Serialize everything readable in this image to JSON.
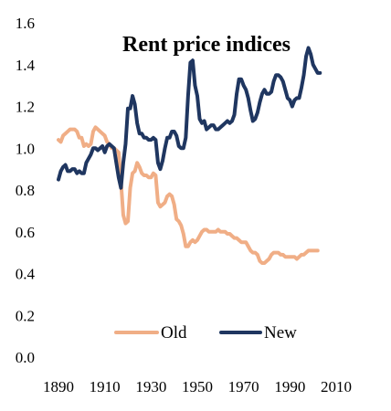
{
  "chart_data": {
    "type": "line",
    "title": "Rent price indices",
    "xlabel": "",
    "ylabel": "",
    "xlim": [
      1890,
      2010
    ],
    "ylim": [
      0.0,
      1.6
    ],
    "x_ticks": [
      1890,
      1910,
      1930,
      1950,
      1970,
      1990,
      2010
    ],
    "y_ticks": [
      0.0,
      0.2,
      0.4,
      0.6,
      0.8,
      1.0,
      1.2,
      1.4,
      1.6
    ],
    "y_tick_labels": [
      "0.0",
      "0.2",
      "0.4",
      "0.6",
      "0.8",
      "1.0",
      "1.2",
      "1.4",
      "1.6"
    ],
    "grid": false,
    "legend_position": "bottom-center",
    "series": [
      {
        "name": "Old",
        "color": "#F0AE86",
        "points": [
          [
            1890,
            1.04
          ],
          [
            1891,
            1.03
          ],
          [
            1892,
            1.06
          ],
          [
            1893,
            1.07
          ],
          [
            1894,
            1.08
          ],
          [
            1895,
            1.09
          ],
          [
            1896,
            1.09
          ],
          [
            1897,
            1.09
          ],
          [
            1898,
            1.08
          ],
          [
            1899,
            1.05
          ],
          [
            1900,
            1.05
          ],
          [
            1901,
            1.01
          ],
          [
            1902,
            1.02
          ],
          [
            1903,
            1.01
          ],
          [
            1904,
            1.02
          ],
          [
            1905,
            1.08
          ],
          [
            1906,
            1.1
          ],
          [
            1907,
            1.09
          ],
          [
            1908,
            1.08
          ],
          [
            1909,
            1.07
          ],
          [
            1910,
            1.06
          ],
          [
            1911,
            1.03
          ],
          [
            1912,
            1.02
          ],
          [
            1913,
            1.0
          ],
          [
            1914,
            1.0
          ],
          [
            1915,
            0.99
          ],
          [
            1916,
            0.98
          ],
          [
            1917,
            0.84
          ],
          [
            1918,
            0.68
          ],
          [
            1919,
            0.64
          ],
          [
            1920,
            0.65
          ],
          [
            1921,
            0.81
          ],
          [
            1922,
            0.88
          ],
          [
            1923,
            0.89
          ],
          [
            1924,
            0.93
          ],
          [
            1925,
            0.91
          ],
          [
            1926,
            0.88
          ],
          [
            1927,
            0.87
          ],
          [
            1928,
            0.87
          ],
          [
            1929,
            0.86
          ],
          [
            1930,
            0.86
          ],
          [
            1931,
            0.88
          ],
          [
            1932,
            0.87
          ],
          [
            1933,
            0.74
          ],
          [
            1934,
            0.72
          ],
          [
            1935,
            0.73
          ],
          [
            1936,
            0.74
          ],
          [
            1937,
            0.77
          ],
          [
            1938,
            0.78
          ],
          [
            1939,
            0.77
          ],
          [
            1940,
            0.73
          ],
          [
            1941,
            0.66
          ],
          [
            1942,
            0.65
          ],
          [
            1943,
            0.63
          ],
          [
            1944,
            0.59
          ],
          [
            1945,
            0.53
          ],
          [
            1946,
            0.53
          ],
          [
            1947,
            0.55
          ],
          [
            1948,
            0.56
          ],
          [
            1949,
            0.55
          ],
          [
            1950,
            0.56
          ],
          [
            1951,
            0.58
          ],
          [
            1952,
            0.6
          ],
          [
            1953,
            0.61
          ],
          [
            1954,
            0.61
          ],
          [
            1955,
            0.6
          ],
          [
            1956,
            0.6
          ],
          [
            1957,
            0.6
          ],
          [
            1958,
            0.6
          ],
          [
            1959,
            0.61
          ],
          [
            1960,
            0.6
          ],
          [
            1961,
            0.6
          ],
          [
            1962,
            0.6
          ],
          [
            1963,
            0.59
          ],
          [
            1964,
            0.59
          ],
          [
            1965,
            0.58
          ],
          [
            1966,
            0.57
          ],
          [
            1967,
            0.57
          ],
          [
            1968,
            0.56
          ],
          [
            1969,
            0.55
          ],
          [
            1970,
            0.55
          ],
          [
            1971,
            0.55
          ],
          [
            1972,
            0.53
          ],
          [
            1973,
            0.51
          ],
          [
            1974,
            0.5
          ],
          [
            1975,
            0.5
          ],
          [
            1976,
            0.49
          ],
          [
            1977,
            0.46
          ],
          [
            1978,
            0.45
          ],
          [
            1979,
            0.45
          ],
          [
            1980,
            0.46
          ],
          [
            1981,
            0.47
          ],
          [
            1982,
            0.49
          ],
          [
            1983,
            0.5
          ],
          [
            1984,
            0.5
          ],
          [
            1985,
            0.5
          ],
          [
            1986,
            0.49
          ],
          [
            1987,
            0.49
          ],
          [
            1988,
            0.48
          ],
          [
            1989,
            0.48
          ],
          [
            1990,
            0.48
          ],
          [
            1991,
            0.48
          ],
          [
            1992,
            0.48
          ],
          [
            1993,
            0.47
          ],
          [
            1994,
            0.48
          ],
          [
            1995,
            0.49
          ],
          [
            1996,
            0.49
          ],
          [
            1997,
            0.5
          ],
          [
            1998,
            0.51
          ],
          [
            1999,
            0.51
          ],
          [
            2000,
            0.51
          ],
          [
            2001,
            0.51
          ],
          [
            2002,
            0.51
          ]
        ]
      },
      {
        "name": "New",
        "color": "#1F3660",
        "points": [
          [
            1890,
            0.85
          ],
          [
            1891,
            0.89
          ],
          [
            1892,
            0.91
          ],
          [
            1893,
            0.92
          ],
          [
            1894,
            0.89
          ],
          [
            1895,
            0.89
          ],
          [
            1896,
            0.9
          ],
          [
            1897,
            0.9
          ],
          [
            1898,
            0.88
          ],
          [
            1899,
            0.89
          ],
          [
            1900,
            0.88
          ],
          [
            1901,
            0.88
          ],
          [
            1902,
            0.93
          ],
          [
            1903,
            0.95
          ],
          [
            1904,
            0.97
          ],
          [
            1905,
            1.0
          ],
          [
            1906,
            1.0
          ],
          [
            1907,
            0.99
          ],
          [
            1908,
            1.0
          ],
          [
            1909,
            1.01
          ],
          [
            1910,
            0.98
          ],
          [
            1911,
            1.01
          ],
          [
            1912,
            1.02
          ],
          [
            1913,
            1.01
          ],
          [
            1914,
            1.0
          ],
          [
            1915,
            0.93
          ],
          [
            1916,
            0.86
          ],
          [
            1917,
            0.81
          ],
          [
            1918,
            0.93
          ],
          [
            1919,
            1.02
          ],
          [
            1920,
            1.19
          ],
          [
            1921,
            1.19
          ],
          [
            1922,
            1.25
          ],
          [
            1923,
            1.21
          ],
          [
            1924,
            1.12
          ],
          [
            1925,
            1.07
          ],
          [
            1926,
            1.07
          ],
          [
            1927,
            1.05
          ],
          [
            1928,
            1.05
          ],
          [
            1929,
            1.04
          ],
          [
            1930,
            1.04
          ],
          [
            1931,
            1.05
          ],
          [
            1932,
            1.04
          ],
          [
            1933,
            0.93
          ],
          [
            1934,
            0.9
          ],
          [
            1935,
            0.94
          ],
          [
            1936,
            1.0
          ],
          [
            1937,
            1.05
          ],
          [
            1938,
            1.05
          ],
          [
            1939,
            1.08
          ],
          [
            1940,
            1.08
          ],
          [
            1941,
            1.06
          ],
          [
            1942,
            1.01
          ],
          [
            1943,
            1.0
          ],
          [
            1944,
            1.0
          ],
          [
            1945,
            1.05
          ],
          [
            1946,
            1.25
          ],
          [
            1947,
            1.41
          ],
          [
            1948,
            1.42
          ],
          [
            1949,
            1.3
          ],
          [
            1950,
            1.25
          ],
          [
            1951,
            1.14
          ],
          [
            1952,
            1.12
          ],
          [
            1953,
            1.13
          ],
          [
            1954,
            1.09
          ],
          [
            1955,
            1.1
          ],
          [
            1956,
            1.11
          ],
          [
            1957,
            1.11
          ],
          [
            1958,
            1.09
          ],
          [
            1959,
            1.09
          ],
          [
            1960,
            1.1
          ],
          [
            1961,
            1.11
          ],
          [
            1962,
            1.12
          ],
          [
            1963,
            1.13
          ],
          [
            1964,
            1.12
          ],
          [
            1965,
            1.13
          ],
          [
            1966,
            1.16
          ],
          [
            1967,
            1.26
          ],
          [
            1968,
            1.33
          ],
          [
            1969,
            1.33
          ],
          [
            1970,
            1.3
          ],
          [
            1971,
            1.28
          ],
          [
            1972,
            1.24
          ],
          [
            1973,
            1.18
          ],
          [
            1974,
            1.13
          ],
          [
            1975,
            1.14
          ],
          [
            1976,
            1.17
          ],
          [
            1977,
            1.22
          ],
          [
            1978,
            1.26
          ],
          [
            1979,
            1.28
          ],
          [
            1980,
            1.26
          ],
          [
            1981,
            1.26
          ],
          [
            1982,
            1.27
          ],
          [
            1983,
            1.32
          ],
          [
            1984,
            1.35
          ],
          [
            1985,
            1.35
          ],
          [
            1986,
            1.34
          ],
          [
            1987,
            1.32
          ],
          [
            1988,
            1.28
          ],
          [
            1989,
            1.24
          ],
          [
            1990,
            1.23
          ],
          [
            1991,
            1.2
          ],
          [
            1992,
            1.23
          ],
          [
            1993,
            1.24
          ],
          [
            1994,
            1.24
          ],
          [
            1995,
            1.29
          ],
          [
            1996,
            1.35
          ],
          [
            1997,
            1.44
          ],
          [
            1998,
            1.48
          ],
          [
            1999,
            1.45
          ],
          [
            2000,
            1.4
          ],
          [
            2001,
            1.38
          ],
          [
            2002,
            1.36
          ],
          [
            2003,
            1.36
          ]
        ]
      }
    ]
  }
}
